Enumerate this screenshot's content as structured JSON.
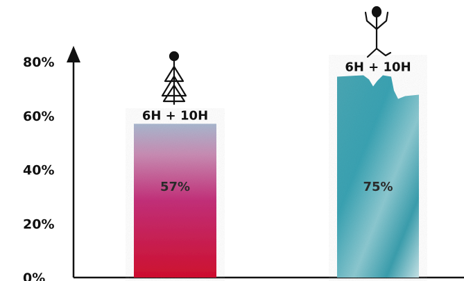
{
  "chart_data": {
    "type": "bar",
    "categories": [
      "6H + 10H",
      "6H + 10H"
    ],
    "values": [
      57,
      75
    ],
    "value_labels": [
      "57%",
      "75%"
    ],
    "ylim": [
      0,
      80
    ],
    "yticks": [
      0,
      20,
      40,
      60,
      80
    ],
    "ytick_labels": [
      "0%",
      "20%",
      "40%",
      "60%",
      "80%"
    ],
    "grid": false,
    "colors": {
      "bar1_top": "#a9b8cf",
      "bar1_mid": "#c4307a",
      "bar1_bottom": "#d1102f",
      "bar2_main": "#3aa3b3",
      "bar2_light": "#bfe0e4",
      "axis": "#111111"
    },
    "icons": [
      "tree-stick-figure-icon",
      "arms-up-stick-figure-icon"
    ]
  }
}
